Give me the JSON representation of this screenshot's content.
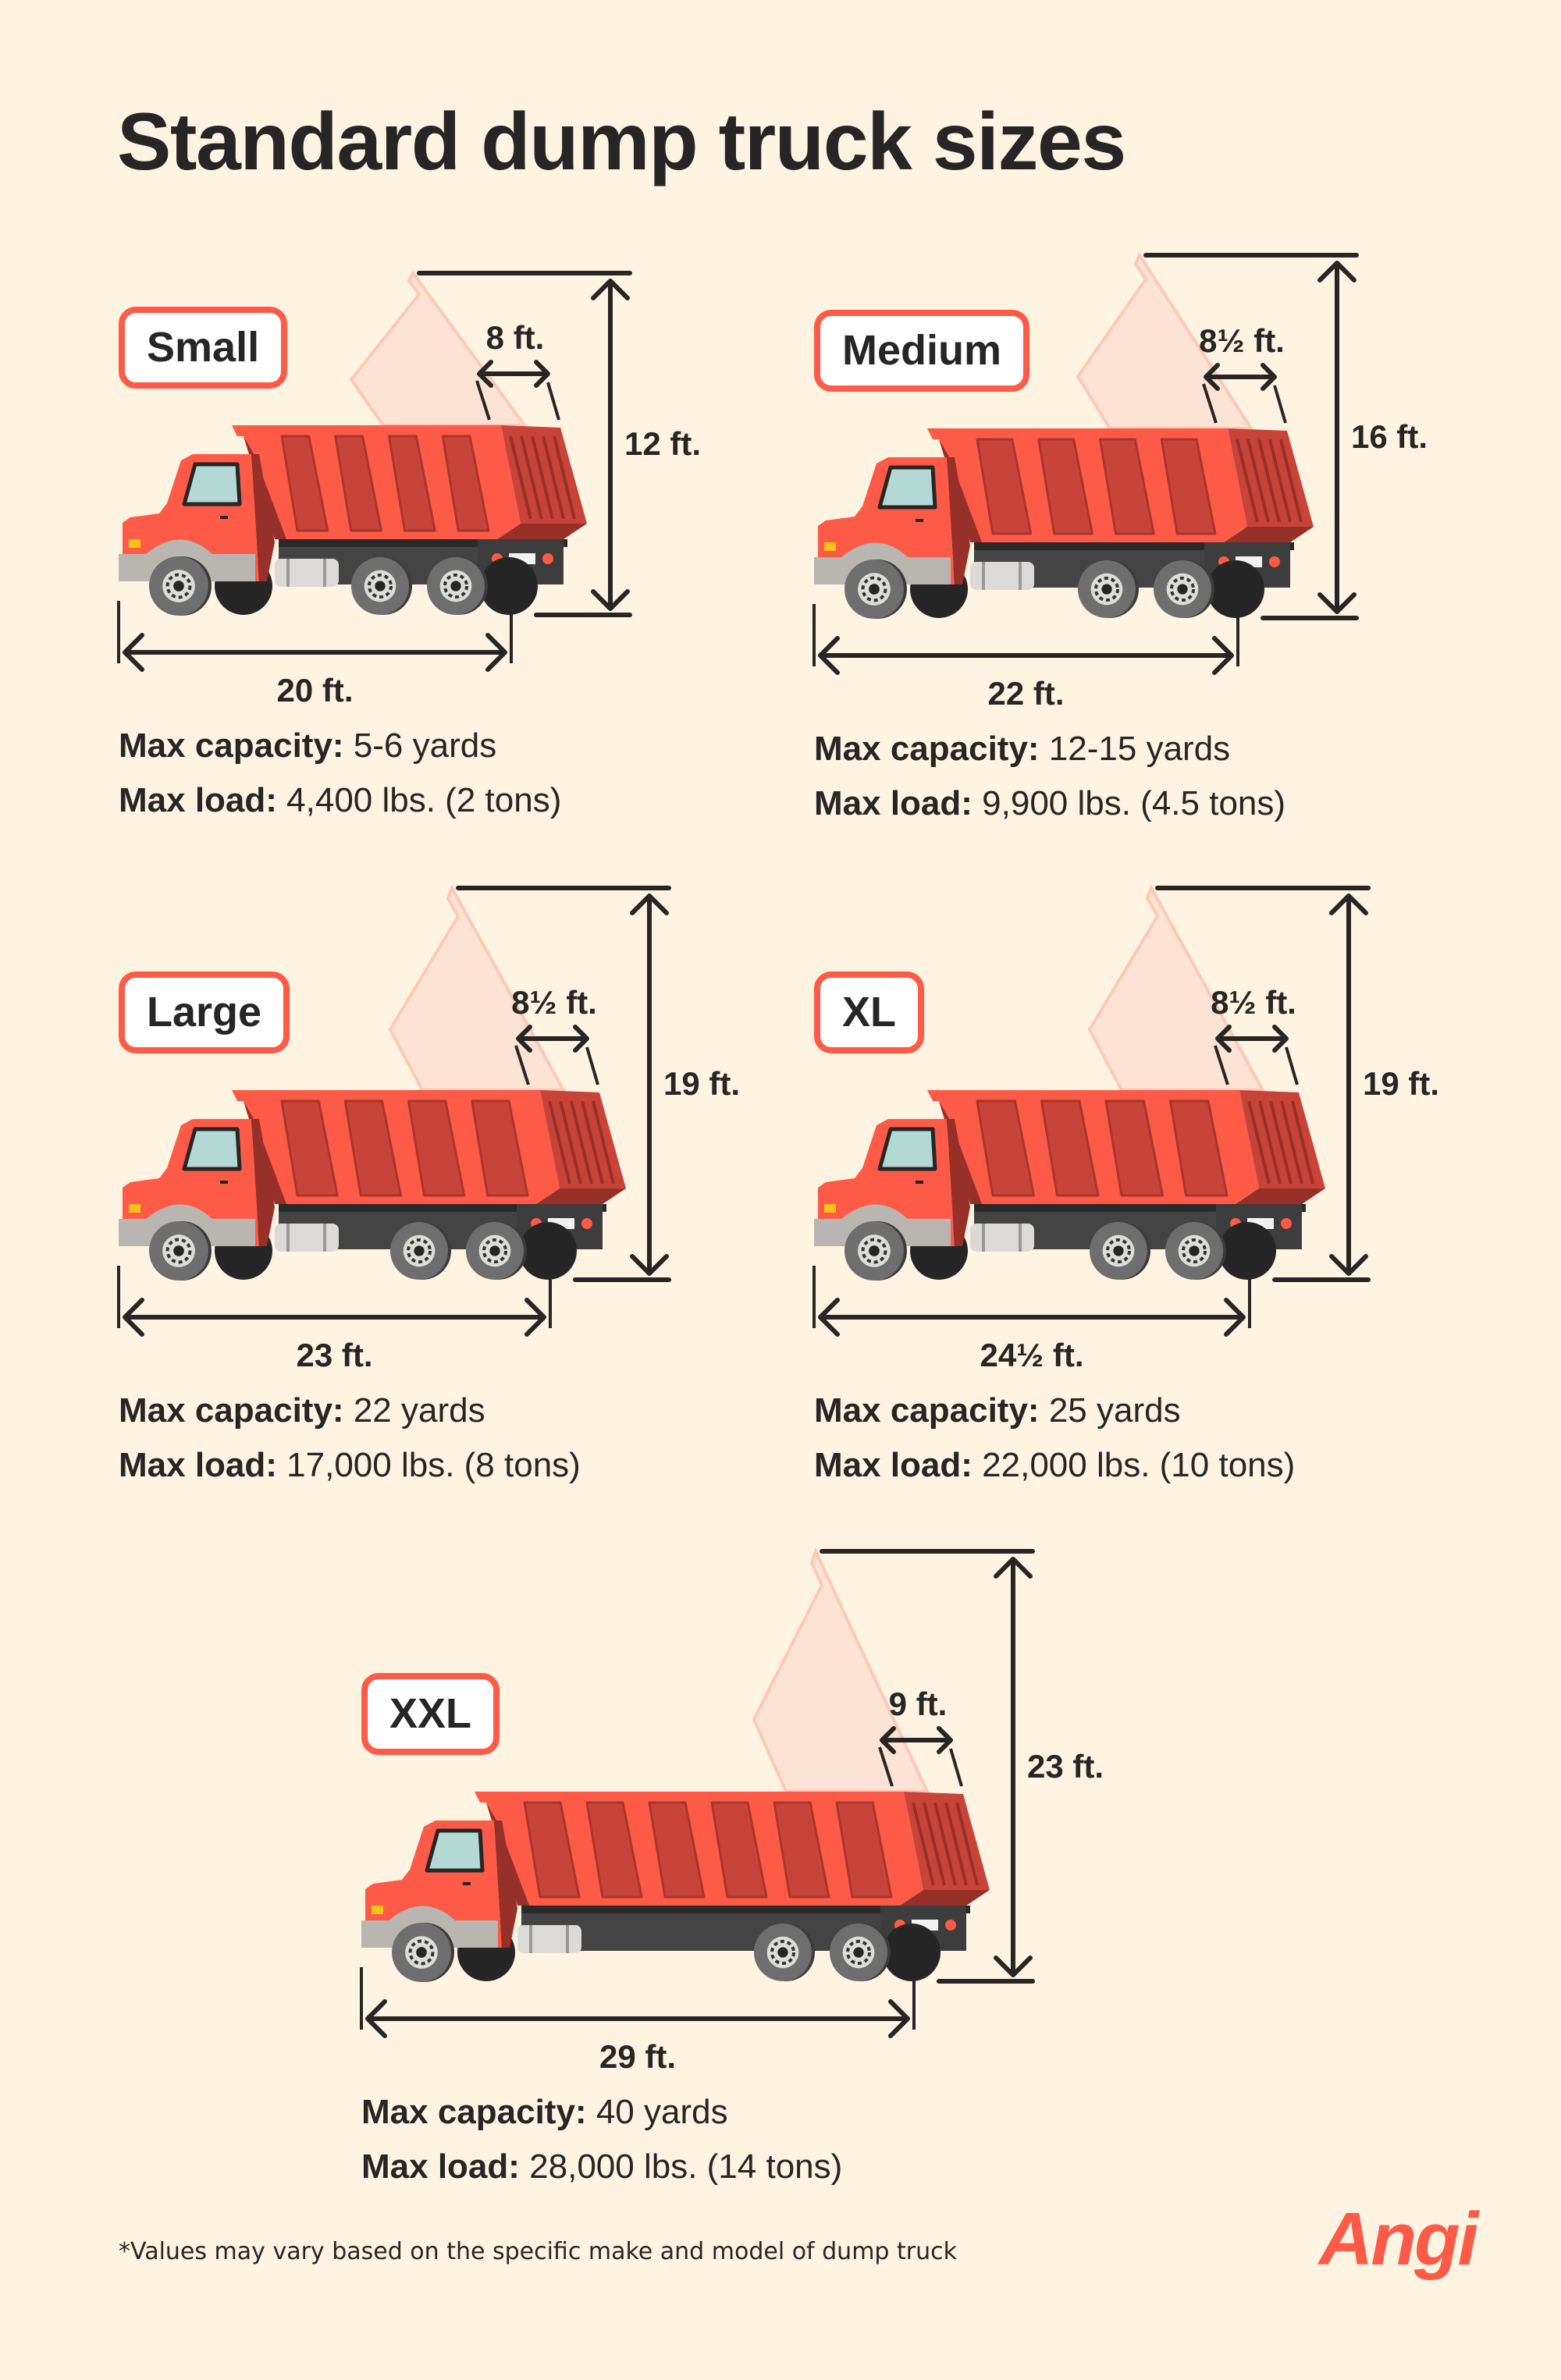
{
  "title": "Standard dump truck sizes",
  "colors": {
    "background": "#fff3e2",
    "accent": "#fd5a47",
    "text": "#262626"
  },
  "trucks": [
    {
      "label": "Small",
      "bed_width": "8 ft.",
      "height": "12 ft.",
      "length": "20 ft.",
      "capacity_label": "Max capacity:",
      "capacity": "5-6 yards",
      "load_label": "Max load:",
      "load": "4,400 lbs. (2 tons)"
    },
    {
      "label": "Medium",
      "bed_width": "8½ ft.",
      "height": "16 ft.",
      "length": "22 ft.",
      "capacity_label": "Max capacity:",
      "capacity": "12-15 yards",
      "load_label": "Max load:",
      "load": "9,900 lbs. (4.5 tons)"
    },
    {
      "label": "Large",
      "bed_width": "8½ ft.",
      "height": "19 ft.",
      "length": "23 ft.",
      "capacity_label": "Max capacity:",
      "capacity": "22 yards",
      "load_label": "Max load:",
      "load": "17,000 lbs. (8 tons)"
    },
    {
      "label": "XL",
      "bed_width": "8½ ft.",
      "height": "19 ft.",
      "length": "24½ ft.",
      "capacity_label": "Max capacity:",
      "capacity": "25 yards",
      "load_label": "Max load:",
      "load": "22,000 lbs. (10 tons)"
    },
    {
      "label": "XXL",
      "bed_width": "9 ft.",
      "height": "23 ft.",
      "length": "29 ft.",
      "capacity_label": "Max capacity:",
      "capacity": "40 yards",
      "load_label": "Max load:",
      "load": "28,000 lbs. (14 tons)"
    }
  ],
  "footnote": "*Values may vary based on the specific make and model of dump truck",
  "logo": "Angi"
}
